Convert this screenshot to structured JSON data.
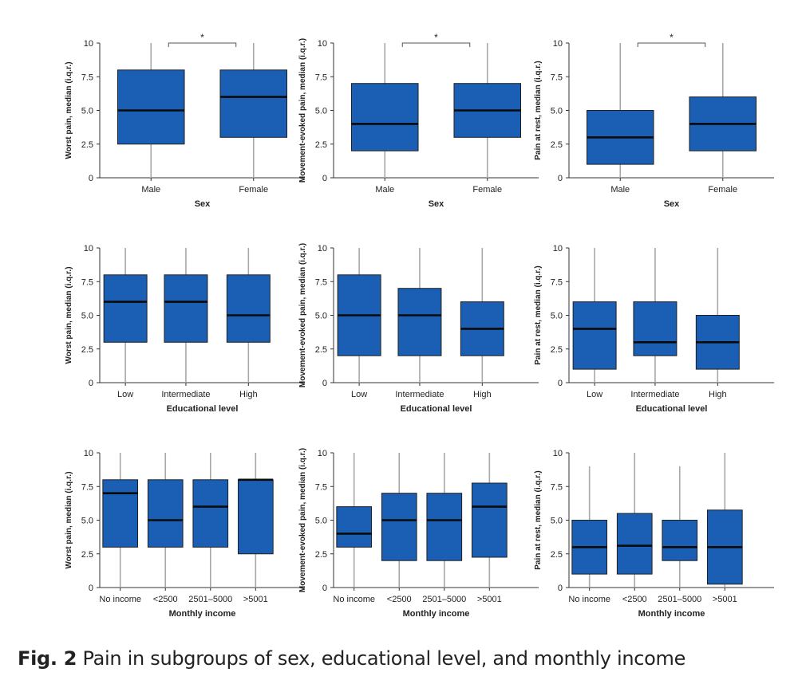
{
  "colors": {
    "box": "#1a5fb4",
    "stroke": "#202020",
    "median": "#0a0a0a",
    "whisker": "#a8a8a8"
  },
  "caption": {
    "label": "Fig. 2",
    "text": "Pain in subgroups of sex, educational level, and monthly income"
  },
  "chart_data": [
    {
      "type": "box",
      "ylabel": "Worst pain, median (i.q.r.)",
      "xlabel": "Sex",
      "ylim": [
        0,
        10
      ],
      "yticks": [
        "0",
        "2.5",
        "5.0",
        "7.5",
        "10"
      ],
      "significance": "*",
      "categories": [
        "Male",
        "Female"
      ],
      "boxes": [
        {
          "min": 0,
          "q1": 2.5,
          "median": 5,
          "q3": 8,
          "max": 10
        },
        {
          "min": 0,
          "q1": 3,
          "median": 6,
          "q3": 8,
          "max": 10
        }
      ]
    },
    {
      "type": "box",
      "ylabel": "Movement-evoked pain, median (i.q.r.)",
      "xlabel": "Sex",
      "ylim": [
        0,
        10
      ],
      "yticks": [
        "0",
        "2.5",
        "5.0",
        "7.5",
        "10"
      ],
      "significance": "*",
      "categories": [
        "Male",
        "Female"
      ],
      "boxes": [
        {
          "min": 0,
          "q1": 2,
          "median": 4,
          "q3": 7,
          "max": 10
        },
        {
          "min": 0,
          "q1": 3,
          "median": 5,
          "q3": 7,
          "max": 10
        }
      ]
    },
    {
      "type": "box",
      "ylabel": "Pain at rest, median (i.q.r.)",
      "xlabel": "Sex",
      "ylim": [
        0,
        10
      ],
      "yticks": [
        "0",
        "2.5",
        "5.0",
        "7.5",
        "10"
      ],
      "significance": "*",
      "categories": [
        "Male",
        "Female"
      ],
      "boxes": [
        {
          "min": 0,
          "q1": 1,
          "median": 3,
          "q3": 5,
          "max": 10
        },
        {
          "min": 0,
          "q1": 2,
          "median": 4,
          "q3": 6,
          "max": 10
        }
      ]
    },
    {
      "type": "box",
      "ylabel": "Worst pain, median (i.q.r.)",
      "xlabel": "Educational level",
      "ylim": [
        0,
        10
      ],
      "yticks": [
        "0",
        "2.5",
        "5.0",
        "7.5",
        "10"
      ],
      "categories": [
        "Low",
        "Intermediate",
        "High"
      ],
      "boxes": [
        {
          "min": 0,
          "q1": 3,
          "median": 6,
          "q3": 8,
          "max": 10
        },
        {
          "min": 0,
          "q1": 3,
          "median": 6,
          "q3": 8,
          "max": 10
        },
        {
          "min": 0,
          "q1": 3,
          "median": 5,
          "q3": 8,
          "max": 10
        }
      ]
    },
    {
      "type": "box",
      "ylabel": "Movement-evoked pain, median (i.q.r.)",
      "xlabel": "Educational level",
      "ylim": [
        0,
        10
      ],
      "yticks": [
        "0",
        "2.5",
        "5.0",
        "7.5",
        "10"
      ],
      "categories": [
        "Low",
        "Intermediate",
        "High"
      ],
      "boxes": [
        {
          "min": 0,
          "q1": 2,
          "median": 5,
          "q3": 8,
          "max": 10
        },
        {
          "min": 0,
          "q1": 2,
          "median": 5,
          "q3": 7,
          "max": 10
        },
        {
          "min": 0,
          "q1": 2,
          "median": 4,
          "q3": 6,
          "max": 10
        }
      ]
    },
    {
      "type": "box",
      "ylabel": "Pain at rest, median (i.q.r.)",
      "xlabel": "Educational level",
      "ylim": [
        0,
        10
      ],
      "yticks": [
        "0",
        "2.5",
        "5.0",
        "7.5",
        "10"
      ],
      "categories": [
        "Low",
        "Intermediate",
        "High"
      ],
      "boxes": [
        {
          "min": 0,
          "q1": 1,
          "median": 4,
          "q3": 6,
          "max": 10
        },
        {
          "min": 0,
          "q1": 2,
          "median": 3,
          "q3": 6,
          "max": 10
        },
        {
          "min": 0,
          "q1": 1,
          "median": 3,
          "q3": 5,
          "max": 10
        }
      ]
    },
    {
      "type": "box",
      "ylabel": "Worst pain, median (i.q.r.)",
      "xlabel": "Monthly income",
      "ylim": [
        0,
        10
      ],
      "yticks": [
        "0",
        "2.5",
        "5.0",
        "7.5",
        "10"
      ],
      "categories": [
        "No income",
        "<2500",
        "2501–5000",
        ">5001"
      ],
      "boxes": [
        {
          "min": 0,
          "q1": 3,
          "median": 7,
          "q3": 8,
          "max": 10
        },
        {
          "min": 0,
          "q1": 3,
          "median": 5,
          "q3": 8,
          "max": 10
        },
        {
          "min": 0,
          "q1": 3,
          "median": 6,
          "q3": 8,
          "max": 10
        },
        {
          "min": 0,
          "q1": 2.5,
          "median": 8,
          "q3": 8,
          "max": 10
        }
      ]
    },
    {
      "type": "box",
      "ylabel": "Movement-evoked pain, median (i.q.r.)",
      "xlabel": "Monthly income",
      "ylim": [
        0,
        10
      ],
      "yticks": [
        "0",
        "2.5",
        "5.0",
        "7.5",
        "10"
      ],
      "categories": [
        "No income",
        "<2500",
        "2501–5000",
        ">5001"
      ],
      "boxes": [
        {
          "min": 0,
          "q1": 3,
          "median": 4,
          "q3": 6,
          "max": 10
        },
        {
          "min": 0,
          "q1": 2,
          "median": 5,
          "q3": 7,
          "max": 10
        },
        {
          "min": 0,
          "q1": 2,
          "median": 5,
          "q3": 7,
          "max": 10
        },
        {
          "min": 0,
          "q1": 2.25,
          "median": 6,
          "q3": 7.75,
          "max": 10
        }
      ]
    },
    {
      "type": "box",
      "ylabel": "Pain at rest, median (i.q.r.)",
      "xlabel": "Monthly income",
      "ylim": [
        0,
        10
      ],
      "yticks": [
        "0",
        "2.5",
        "5.0",
        "7.5",
        "10"
      ],
      "categories": [
        "No income",
        "<2500",
        "2501–5000",
        ">5001"
      ],
      "boxes": [
        {
          "min": 0,
          "q1": 1,
          "median": 3,
          "q3": 5,
          "max": 9
        },
        {
          "min": 0,
          "q1": 1,
          "median": 3.1,
          "q3": 5.5,
          "max": 10
        },
        {
          "min": 0,
          "q1": 2,
          "median": 3,
          "q3": 5,
          "max": 9
        },
        {
          "min": 0,
          "q1": 0.25,
          "median": 3,
          "q3": 5.75,
          "max": 10
        }
      ]
    }
  ]
}
